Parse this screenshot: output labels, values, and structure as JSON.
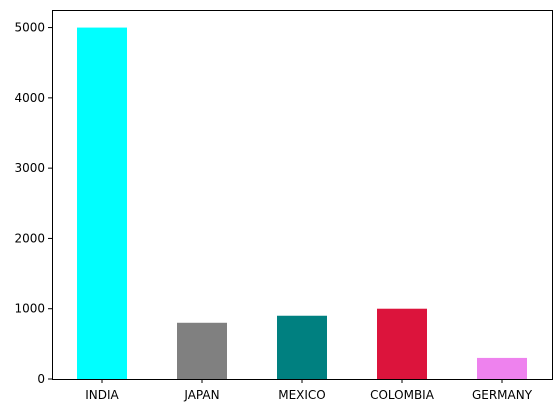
{
  "chart_data": {
    "type": "bar",
    "title": "",
    "xlabel": "",
    "ylabel": "",
    "categories": [
      "INDIA",
      "JAPAN",
      "MEXICO",
      "COLOMBIA",
      "GERMANY"
    ],
    "values": [
      5000,
      800,
      900,
      1000,
      300
    ],
    "colors": [
      "#00ffff",
      "#808080",
      "#008080",
      "#dc143c",
      "#ee82ee"
    ],
    "ylim": [
      0,
      5250
    ],
    "yticks": [
      0,
      1000,
      2000,
      3000,
      4000,
      5000
    ],
    "grid": false,
    "legend": "none"
  }
}
